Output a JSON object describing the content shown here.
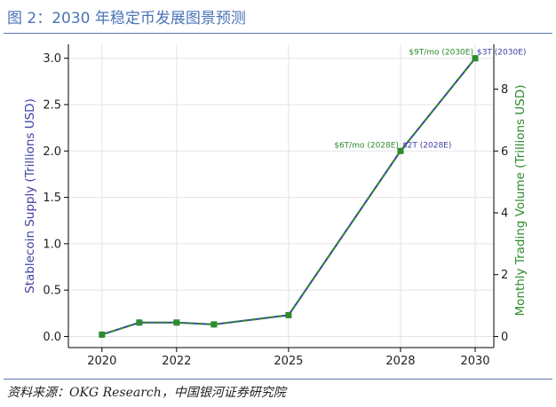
{
  "figure": {
    "title": "图 2：2030 年稳定币发展图景预测",
    "source": "资料来源：OKG Research，中国银河证券研究院"
  },
  "chart_data": {
    "type": "line",
    "x": [
      2020,
      2021,
      2022,
      2023,
      2025,
      2028,
      2030
    ],
    "xticks": [
      "2020",
      "2022",
      "2025",
      "2028",
      "2030"
    ],
    "xlim": [
      2019.1,
      2030.5
    ],
    "series": [
      {
        "axis": "left",
        "color": "#3f3fa5",
        "marker": "circle",
        "values": [
          0.02,
          0.15,
          0.15,
          0.13,
          0.23,
          2.0,
          3.0
        ]
      },
      {
        "axis": "right",
        "color": "#2e8b2e",
        "marker": "square",
        "dashed": true,
        "values": [
          0.06,
          0.45,
          0.45,
          0.39,
          0.69,
          6.0,
          9.0
        ]
      }
    ],
    "y_left": {
      "label": "Stablecoin Supply (Trillions USD)",
      "color": "#3f3fa5",
      "ylim": [
        -0.12,
        3.15
      ],
      "ticks": [
        "0.0",
        "0.5",
        "1.0",
        "1.5",
        "2.0",
        "2.5",
        "3.0"
      ]
    },
    "y_right": {
      "label": "Monthly Trading Volume (Trillions USD)",
      "color": "#2e8b2e",
      "ylim": [
        -0.36,
        9.45
      ],
      "ticks": [
        "0",
        "2",
        "4",
        "6",
        "8"
      ]
    },
    "annotations": [
      {
        "x": 2028,
        "y": 2.0,
        "axis": "left",
        "text": "$2T (2028E)",
        "color": "#3f3fa5",
        "side": "right"
      },
      {
        "x": 2028,
        "y": 6.0,
        "axis": "right",
        "text": "$6T/mo (2028E)",
        "color": "#2e8b2e",
        "side": "left"
      },
      {
        "x": 2030,
        "y": 3.0,
        "axis": "left",
        "text": "$3T (2030E)",
        "color": "#3f3fa5",
        "side": "right"
      },
      {
        "x": 2030,
        "y": 9.0,
        "axis": "right",
        "text": "$9T/mo (2030E)",
        "color": "#2e8b2e",
        "side": "left"
      }
    ],
    "grid": true
  }
}
